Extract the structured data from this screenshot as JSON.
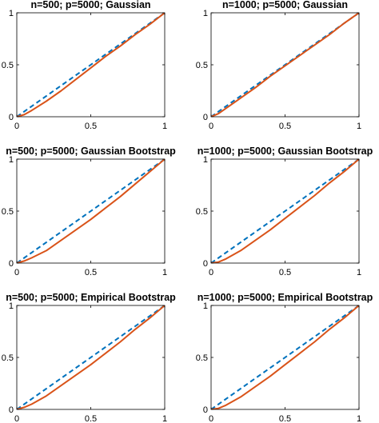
{
  "chart_data": [
    {
      "type": "line",
      "title": "n=500; p=5000; Gaussian",
      "xlim": [
        0,
        1
      ],
      "ylim": [
        0,
        1
      ],
      "xticks": [
        "0",
        "0.5",
        "1"
      ],
      "yticks": [
        "0",
        "0.5",
        "1"
      ],
      "grid": false,
      "series": [
        {
          "style": "dashed",
          "color": "#0072BD",
          "x": [
            0,
            1
          ],
          "y": [
            0,
            1
          ]
        },
        {
          "style": "solid",
          "color": "#D95319",
          "x": [
            0,
            0.05,
            0.1,
            0.2,
            0.3,
            0.4,
            0.5,
            0.6,
            0.7,
            0.8,
            0.9,
            1.0
          ],
          "y": [
            0,
            0.02,
            0.06,
            0.15,
            0.25,
            0.36,
            0.47,
            0.58,
            0.68,
            0.79,
            0.89,
            1.0
          ]
        }
      ]
    },
    {
      "type": "line",
      "title": "n=1000; p=5000; Gaussian",
      "xlim": [
        0,
        1
      ],
      "ylim": [
        0,
        1
      ],
      "xticks": [
        "0",
        "0.5",
        "1"
      ],
      "yticks": [
        "0",
        "0.5",
        "1"
      ],
      "grid": false,
      "series": [
        {
          "style": "dashed",
          "color": "#0072BD",
          "x": [
            0,
            1
          ],
          "y": [
            0,
            1
          ]
        },
        {
          "style": "solid",
          "color": "#D95319",
          "x": [
            0,
            0.05,
            0.1,
            0.2,
            0.3,
            0.4,
            0.5,
            0.6,
            0.7,
            0.8,
            0.9,
            1.0
          ],
          "y": [
            0,
            0.03,
            0.08,
            0.18,
            0.28,
            0.39,
            0.49,
            0.59,
            0.69,
            0.79,
            0.9,
            1.0
          ]
        }
      ]
    },
    {
      "type": "line",
      "title": "n=500; p=5000; Gaussian Bootstrap",
      "xlim": [
        0,
        1
      ],
      "ylim": [
        0,
        1
      ],
      "xticks": [
        "0",
        "0.5",
        "1"
      ],
      "yticks": [
        "0",
        "0.5",
        "1"
      ],
      "grid": false,
      "series": [
        {
          "style": "dashed",
          "color": "#0072BD",
          "x": [
            0,
            1
          ],
          "y": [
            0,
            1
          ]
        },
        {
          "style": "solid",
          "color": "#D95319",
          "x": [
            0,
            0.05,
            0.1,
            0.2,
            0.3,
            0.4,
            0.5,
            0.6,
            0.7,
            0.8,
            0.9,
            1.0
          ],
          "y": [
            0,
            0.02,
            0.05,
            0.12,
            0.22,
            0.32,
            0.42,
            0.53,
            0.64,
            0.76,
            0.88,
            1.0
          ]
        }
      ]
    },
    {
      "type": "line",
      "title": "n=1000; p=5000; Gaussian Bootstrap",
      "xlim": [
        0,
        1
      ],
      "ylim": [
        0,
        1
      ],
      "xticks": [
        "0",
        "0.5",
        "1"
      ],
      "yticks": [
        "0",
        "0.5",
        "1"
      ],
      "grid": false,
      "series": [
        {
          "style": "dashed",
          "color": "#0072BD",
          "x": [
            0,
            1
          ],
          "y": [
            0,
            1
          ]
        },
        {
          "style": "solid",
          "color": "#D95319",
          "x": [
            0,
            0.05,
            0.1,
            0.2,
            0.3,
            0.4,
            0.5,
            0.6,
            0.7,
            0.8,
            0.9,
            1.0
          ],
          "y": [
            0,
            0.01,
            0.04,
            0.12,
            0.22,
            0.32,
            0.43,
            0.54,
            0.65,
            0.77,
            0.88,
            1.0
          ]
        }
      ]
    },
    {
      "type": "line",
      "title": "n=500; p=5000; Empirical Bootstrap",
      "xlim": [
        0,
        1
      ],
      "ylim": [
        0,
        1
      ],
      "xticks": [
        "0",
        "0.5",
        "1"
      ],
      "yticks": [
        "0",
        "0.5",
        "1"
      ],
      "grid": false,
      "series": [
        {
          "style": "dashed",
          "color": "#0072BD",
          "x": [
            0,
            1
          ],
          "y": [
            0,
            1
          ]
        },
        {
          "style": "solid",
          "color": "#D95319",
          "x": [
            0,
            0.05,
            0.1,
            0.2,
            0.3,
            0.4,
            0.5,
            0.6,
            0.7,
            0.8,
            0.9,
            1.0
          ],
          "y": [
            0,
            0.02,
            0.05,
            0.13,
            0.23,
            0.33,
            0.43,
            0.54,
            0.65,
            0.77,
            0.88,
            1.0
          ]
        }
      ]
    },
    {
      "type": "line",
      "title": "n=1000; p=5000; Empirical Bootstrap",
      "xlim": [
        0,
        1
      ],
      "ylim": [
        0,
        1
      ],
      "xticks": [
        "0",
        "0.5",
        "1"
      ],
      "yticks": [
        "0",
        "0.5",
        "1"
      ],
      "grid": false,
      "series": [
        {
          "style": "dashed",
          "color": "#0072BD",
          "x": [
            0,
            1
          ],
          "y": [
            0,
            1
          ]
        },
        {
          "style": "solid",
          "color": "#D95319",
          "x": [
            0,
            0.05,
            0.1,
            0.2,
            0.3,
            0.4,
            0.5,
            0.6,
            0.7,
            0.8,
            0.9,
            1.0
          ],
          "y": [
            0,
            0.01,
            0.04,
            0.12,
            0.22,
            0.32,
            0.43,
            0.54,
            0.65,
            0.77,
            0.88,
            1.0
          ]
        }
      ]
    }
  ]
}
